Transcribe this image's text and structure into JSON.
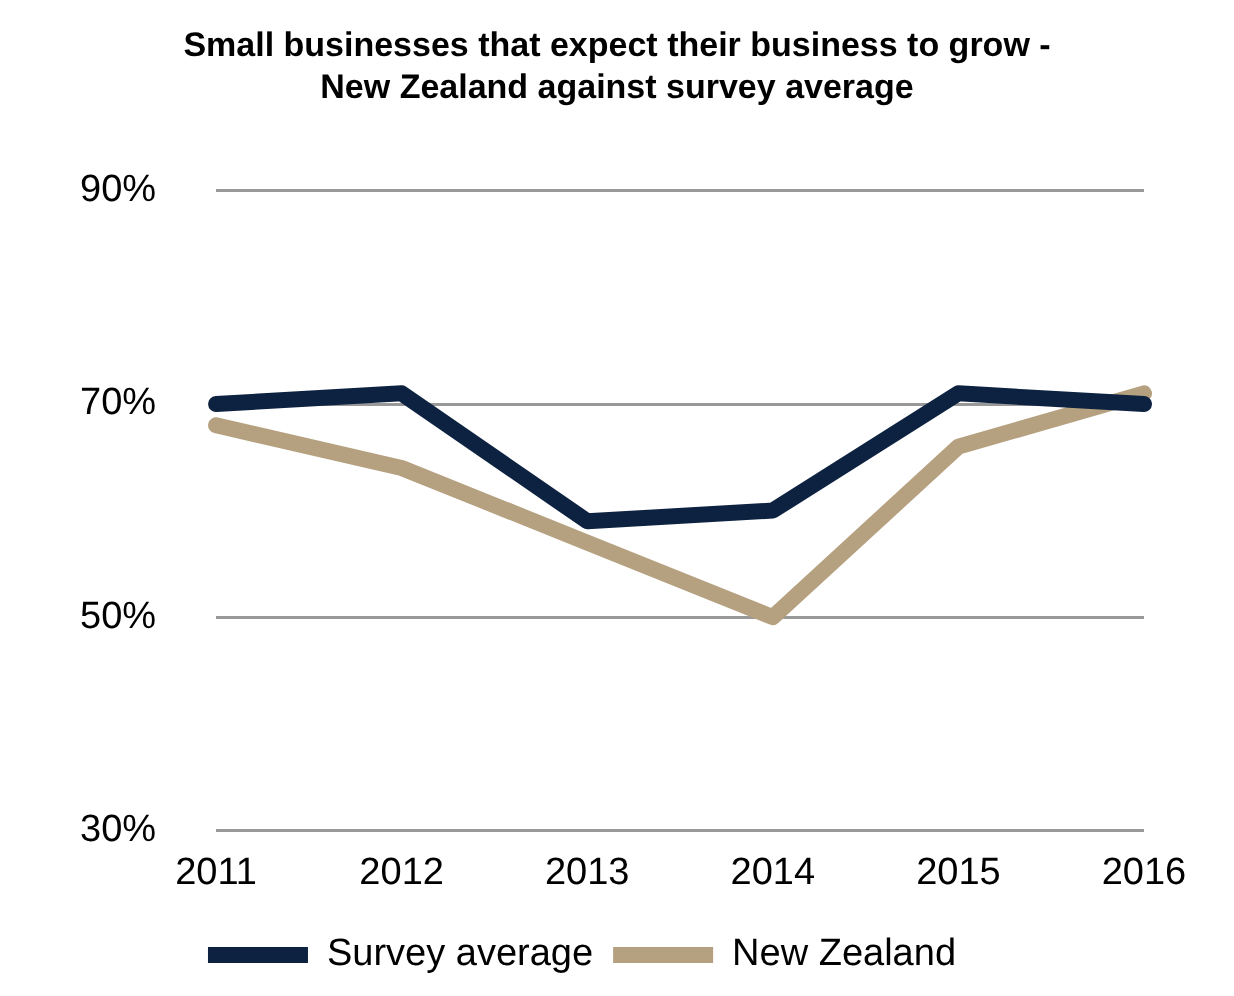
{
  "chart_data": {
    "type": "line",
    "title": "Small businesses that expect their business to grow - New Zealand against survey average",
    "categories": [
      "2011",
      "2012",
      "2013",
      "2014",
      "2015",
      "2016"
    ],
    "series": [
      {
        "name": "Survey average",
        "color": "#0d2240",
        "values": [
          70,
          71,
          59,
          60,
          71,
          70
        ]
      },
      {
        "name": "New Zealand",
        "color": "#b5a07f",
        "values": [
          68,
          64,
          57,
          50,
          66,
          71
        ]
      }
    ],
    "ylim": [
      30,
      90
    ],
    "yticks": [
      {
        "value": 30,
        "label": "30%"
      },
      {
        "value": 50,
        "label": "50%"
      },
      {
        "value": 70,
        "label": "70%"
      },
      {
        "value": 90,
        "label": "90%"
      }
    ],
    "grid": "y",
    "legend": "bottom",
    "marker": "none",
    "line_style": "solid"
  }
}
